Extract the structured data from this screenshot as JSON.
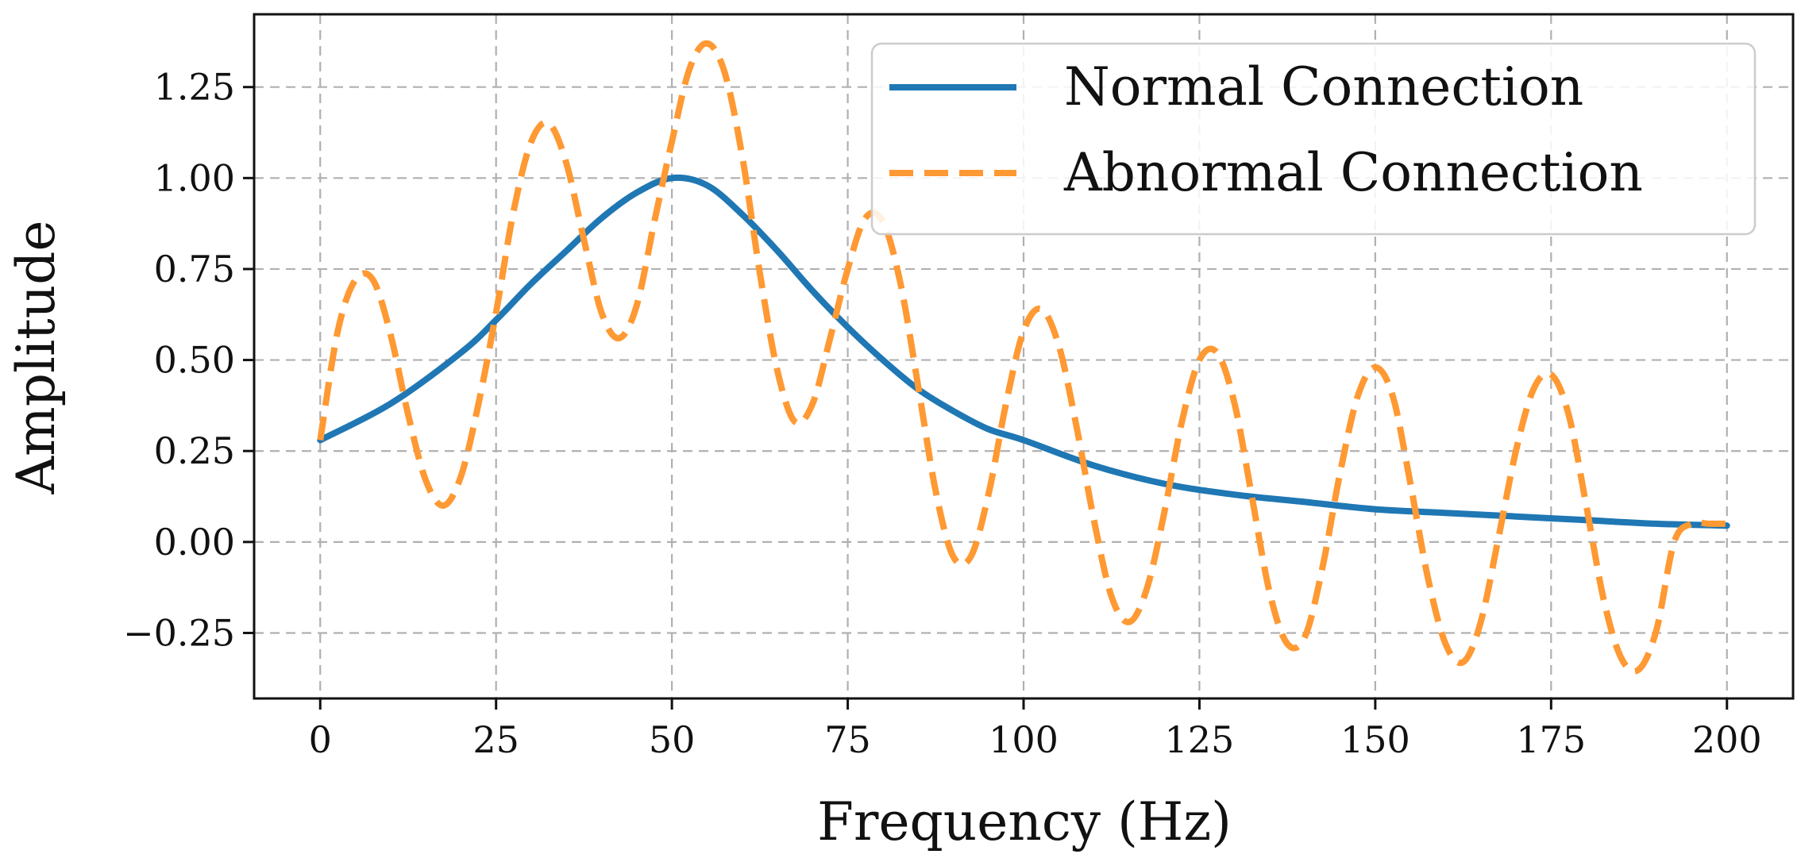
{
  "chart_data": {
    "type": "line",
    "title": "",
    "xlabel": "Frequency (Hz)",
    "ylabel": "Amplitude",
    "xlim": [
      -9.4,
      209.4
    ],
    "ylim": [
      -0.43,
      1.45
    ],
    "xticks": [
      0,
      25,
      50,
      75,
      100,
      125,
      150,
      175,
      200
    ],
    "xtick_labels": [
      "0",
      "25",
      "50",
      "75",
      "100",
      "125",
      "150",
      "175",
      "200"
    ],
    "yticks": [
      -0.25,
      0.0,
      0.25,
      0.5,
      0.75,
      1.0,
      1.25
    ],
    "ytick_labels": [
      "−0.25",
      "0.00",
      "0.25",
      "0.50",
      "0.75",
      "1.00",
      "1.25"
    ],
    "grid": true,
    "legend_position": "top-right",
    "series": [
      {
        "name": "Normal Connection",
        "color": "#1f77b4",
        "style": "solid",
        "x": [
          0,
          10,
          20,
          25,
          30,
          35,
          40,
          45,
          50,
          55,
          60,
          65,
          70,
          75,
          80,
          85,
          90,
          95,
          100,
          110,
          120,
          130,
          140,
          150,
          160,
          170,
          180,
          190,
          200
        ],
        "y": [
          0.28,
          0.38,
          0.52,
          0.61,
          0.71,
          0.8,
          0.89,
          0.96,
          1.0,
          0.98,
          0.9,
          0.8,
          0.69,
          0.59,
          0.5,
          0.42,
          0.36,
          0.31,
          0.28,
          0.21,
          0.16,
          0.13,
          0.11,
          0.09,
          0.08,
          0.07,
          0.06,
          0.05,
          0.045
        ]
      },
      {
        "name": "Abnormal Connection",
        "color": "#ff9933",
        "style": "dashed",
        "x": [
          0,
          2.5,
          5,
          7.5,
          10,
          12.5,
          15,
          17.5,
          20,
          22.5,
          25,
          27.5,
          30,
          32.5,
          35,
          37.5,
          40,
          42.5,
          45,
          47.5,
          50,
          52.5,
          55,
          57.5,
          60,
          62.5,
          65,
          67.5,
          70,
          72.5,
          75,
          77.5,
          80,
          82.5,
          85,
          87.5,
          90,
          92.5,
          95,
          97.5,
          100,
          102.5,
          105,
          107.5,
          110,
          112.5,
          115,
          117.5,
          120,
          122.5,
          125,
          127.5,
          130,
          132.5,
          135,
          137.5,
          140,
          142.5,
          145,
          147.5,
          150,
          152.5,
          155,
          157.5,
          160,
          162.5,
          165,
          167.5,
          170,
          172.5,
          175,
          177.5,
          180,
          182.5,
          185,
          187.5,
          190,
          192.5,
          195,
          197.5,
          200
        ],
        "y": [
          0.28,
          0.58,
          0.72,
          0.72,
          0.57,
          0.35,
          0.17,
          0.1,
          0.18,
          0.38,
          0.63,
          0.91,
          1.1,
          1.15,
          1.04,
          0.83,
          0.63,
          0.56,
          0.65,
          0.88,
          1.1,
          1.3,
          1.37,
          1.29,
          1.06,
          0.74,
          0.47,
          0.33,
          0.38,
          0.56,
          0.75,
          0.89,
          0.88,
          0.71,
          0.43,
          0.14,
          -0.04,
          -0.04,
          0.13,
          0.38,
          0.58,
          0.64,
          0.54,
          0.32,
          0.06,
          -0.15,
          -0.22,
          -0.13,
          0.08,
          0.33,
          0.5,
          0.52,
          0.38,
          0.12,
          -0.14,
          -0.28,
          -0.26,
          -0.07,
          0.19,
          0.4,
          0.48,
          0.4,
          0.16,
          -0.1,
          -0.28,
          -0.33,
          -0.22,
          0.01,
          0.25,
          0.42,
          0.46,
          0.35,
          0.1,
          -0.16,
          -0.32,
          -0.35,
          -0.24,
          0.0,
          0.05,
          0.05,
          0.05
        ]
      }
    ]
  }
}
